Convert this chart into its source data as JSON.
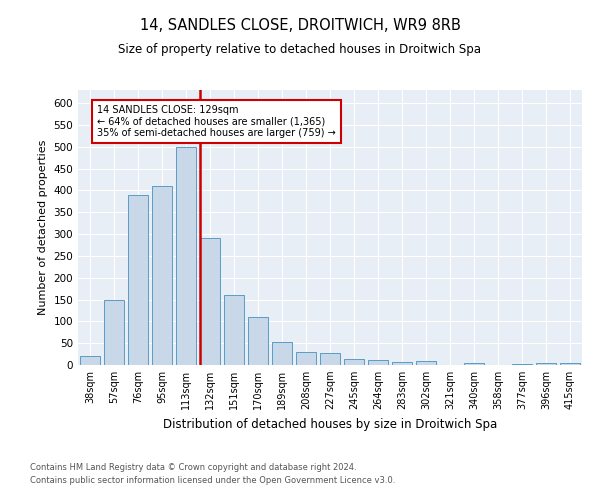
{
  "title1": "14, SANDLES CLOSE, DROITWICH, WR9 8RB",
  "title2": "Size of property relative to detached houses in Droitwich Spa",
  "xlabel": "Distribution of detached houses by size in Droitwich Spa",
  "ylabel": "Number of detached properties",
  "categories": [
    "38sqm",
    "57sqm",
    "76sqm",
    "95sqm",
    "113sqm",
    "132sqm",
    "151sqm",
    "170sqm",
    "189sqm",
    "208sqm",
    "227sqm",
    "245sqm",
    "264sqm",
    "283sqm",
    "302sqm",
    "321sqm",
    "340sqm",
    "358sqm",
    "377sqm",
    "396sqm",
    "415sqm"
  ],
  "values": [
    20,
    148,
    390,
    410,
    500,
    290,
    160,
    110,
    53,
    30,
    28,
    14,
    12,
    6,
    10,
    0,
    5,
    0,
    3,
    5,
    5
  ],
  "bar_color": "#c8d8e8",
  "bar_edge_color": "#5a9cc5",
  "vline_x_idx": 5,
  "vline_color": "#cc0000",
  "annotation_text": "14 SANDLES CLOSE: 129sqm\n← 64% of detached houses are smaller (1,365)\n35% of semi-detached houses are larger (759) →",
  "annotation_box_color": "#ffffff",
  "annotation_box_edge": "#cc0000",
  "ylim": [
    0,
    630
  ],
  "yticks": [
    0,
    50,
    100,
    150,
    200,
    250,
    300,
    350,
    400,
    450,
    500,
    550,
    600
  ],
  "background_color": "#e8eef5",
  "footer1": "Contains HM Land Registry data © Crown copyright and database right 2024.",
  "footer2": "Contains public sector information licensed under the Open Government Licence v3.0."
}
